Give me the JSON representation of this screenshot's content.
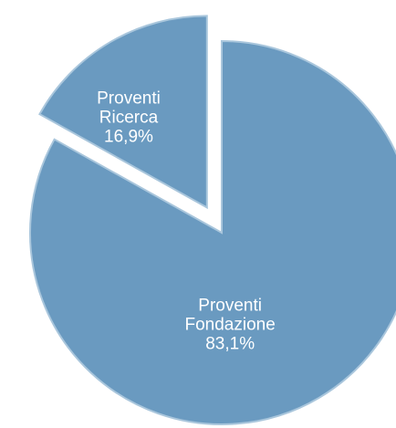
{
  "chart_data": {
    "type": "pie",
    "categories": [
      "Proventi Fondazione",
      "Proventi Ricerca"
    ],
    "values": [
      83.1,
      16.9
    ],
    "value_labels": [
      "83,1%",
      "16,9%"
    ],
    "colors": [
      "#6a9ac0",
      "#6a9ac0"
    ],
    "exploded": [
      false,
      true
    ]
  }
}
